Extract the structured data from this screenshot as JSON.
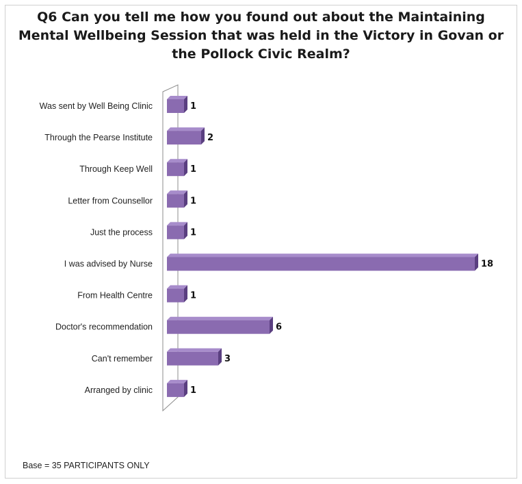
{
  "title": "Q6 Can you tell me how you found out about the Maintaining Mental Wellbeing Session that was held in the Victory in Govan or the Pollock Civic Realm?",
  "footnote": "Base = 35 PARTICIPANTS ONLY",
  "colors": {
    "bar_front": "#8a6bb0",
    "bar_top": "#a78ccb",
    "bar_side": "#5a3f80",
    "wall": "#ffffff",
    "wall_stroke": "#8c8c8c"
  },
  "chart_data": {
    "type": "bar",
    "orientation": "horizontal",
    "style": "3d",
    "title": "Q6 Can you tell me how you found out about the Maintaining Mental Wellbeing Session that was held in the Victory in Govan or the Pollock Civic Realm?",
    "categories": [
      "Was sent by Well Being Clinic",
      "Through the Pearse Institute",
      "Through Keep Well",
      "Letter from Counsellor",
      "Just the process",
      "I was advised by Nurse",
      "From Health Centre",
      "Doctor's recommendation",
      "Can't remember",
      "Arranged by clinic"
    ],
    "values": [
      1,
      2,
      1,
      1,
      1,
      18,
      1,
      6,
      3,
      1
    ],
    "data_labels": [
      "1",
      "2",
      "1",
      "1",
      "1",
      "18",
      "1",
      "6",
      "3",
      "1"
    ],
    "xlim": [
      0,
      18
    ],
    "grid": false,
    "legend": "none"
  }
}
